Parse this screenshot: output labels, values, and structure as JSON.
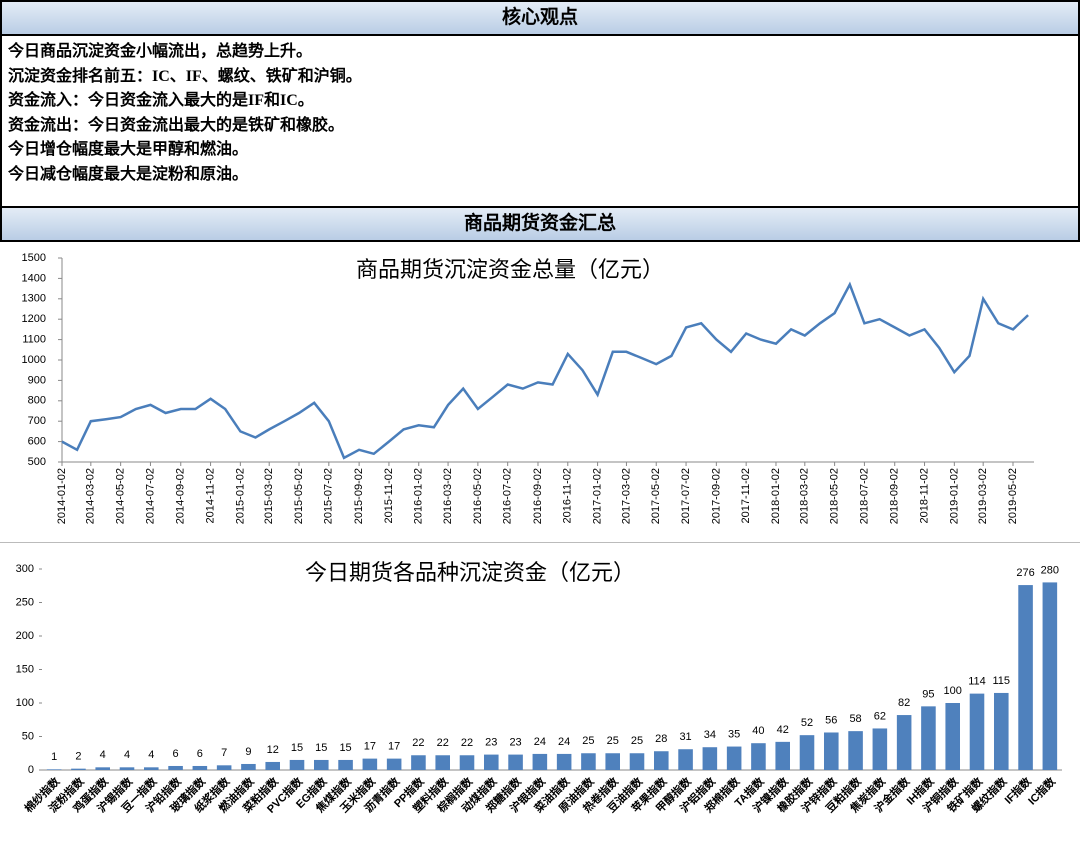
{
  "header": {
    "title": "核心观点"
  },
  "points": [
    "今日商品沉淀资金小幅流出，总趋势上升。",
    "沉淀资金排名前五：IC、IF、螺纹、铁矿和沪铜。",
    "资金流入：今日资金流入最大的是IF和IC。",
    "资金流出：今日资金流出最大的是铁矿和橡胶。",
    "今日增仓幅度最大是甲醇和燃油。",
    "今日减仓幅度最大是淀粉和原油。"
  ],
  "section_title": "商品期货资金汇总",
  "chart_data": [
    {
      "type": "line",
      "title": "商品期货沉淀资金总量（亿元）",
      "color": "#4a7ebb",
      "x": [
        "2014-01-02",
        "2014-02-02",
        "2014-03-02",
        "2014-04-02",
        "2014-05-02",
        "2014-06-02",
        "2014-07-02",
        "2014-08-02",
        "2014-09-02",
        "2014-10-02",
        "2014-11-02",
        "2014-12-02",
        "2015-01-02",
        "2015-02-02",
        "2015-03-02",
        "2015-04-02",
        "2015-05-02",
        "2015-06-02",
        "2015-07-02",
        "2015-08-02",
        "2015-09-02",
        "2015-10-02",
        "2015-11-02",
        "2015-12-02",
        "2016-01-02",
        "2016-02-02",
        "2016-03-02",
        "2016-04-02",
        "2016-05-02",
        "2016-06-02",
        "2016-07-02",
        "2016-08-02",
        "2016-09-02",
        "2016-10-02",
        "2016-11-02",
        "2016-12-02",
        "2017-01-02",
        "2017-02-02",
        "2017-03-02",
        "2017-04-02",
        "2017-05-02",
        "2017-06-02",
        "2017-07-02",
        "2017-08-02",
        "2017-09-02",
        "2017-10-02",
        "2017-11-02",
        "2017-12-02",
        "2018-01-02",
        "2018-02-02",
        "2018-03-02",
        "2018-04-02",
        "2018-05-02",
        "2018-06-02",
        "2018-07-02",
        "2018-08-02",
        "2018-09-02",
        "2018-10-02",
        "2018-11-02",
        "2018-12-02",
        "2019-01-02",
        "2019-02-02",
        "2019-03-02",
        "2019-04-02",
        "2019-05-02",
        "2019-06-02"
      ],
      "values": [
        600,
        560,
        700,
        710,
        720,
        760,
        780,
        740,
        760,
        760,
        810,
        760,
        650,
        620,
        660,
        700,
        740,
        790,
        700,
        520,
        560,
        540,
        600,
        660,
        680,
        670,
        780,
        860,
        760,
        820,
        880,
        860,
        890,
        880,
        1030,
        950,
        830,
        1040,
        1040,
        1010,
        980,
        1020,
        1160,
        1180,
        1100,
        1040,
        1130,
        1100,
        1080,
        1150,
        1120,
        1180,
        1230,
        1370,
        1180,
        1200,
        1160,
        1120,
        1150,
        1060,
        940,
        1020,
        1300,
        1180,
        1150,
        1220
      ],
      "xlim": [
        "2014-01-02",
        "2019-06-14"
      ],
      "xticks": [
        "2014-01-02",
        "2014-03-02",
        "2014-05-02",
        "2014-07-02",
        "2014-09-02",
        "2014-11-02",
        "2015-01-02",
        "2015-03-02",
        "2015-05-02",
        "2015-07-02",
        "2015-09-02",
        "2015-11-02",
        "2016-01-02",
        "2016-03-02",
        "2016-05-02",
        "2016-07-02",
        "2016-09-02",
        "2016-11-02",
        "2017-01-02",
        "2017-03-02",
        "2017-05-02",
        "2017-07-02",
        "2017-09-02",
        "2017-11-02",
        "2018-01-02",
        "2018-03-02",
        "2018-05-02",
        "2018-07-02",
        "2018-09-02",
        "2018-11-02",
        "2019-01-02",
        "2019-03-02",
        "2019-05-02"
      ],
      "ylim": [
        500,
        1500
      ],
      "yticks": [
        500,
        600,
        700,
        800,
        900,
        1000,
        1100,
        1200,
        1300,
        1400,
        1500
      ]
    },
    {
      "type": "bar",
      "title": "今日期货各品种沉淀资金（亿元）",
      "color": "#4f81bd",
      "categories": [
        "棉纱指数",
        "淀粉指数",
        "鸡蛋指数",
        "沪锡指数",
        "豆一指数",
        "沪铅指数",
        "玻璃指数",
        "纸浆指数",
        "燃油指数",
        "菜粕指数",
        "PVC指数",
        "EG指数",
        "焦煤指数",
        "玉米指数",
        "沥青指数",
        "PP指数",
        "塑料指数",
        "棕榈指数",
        "动煤指数",
        "郑糖指数",
        "沪银指数",
        "菜油指数",
        "原油指数",
        "热卷指数",
        "豆油指数",
        "苹果指数",
        "甲醇指数",
        "沪铝指数",
        "郑棉指数",
        "TA指数",
        "沪镍指数",
        "橡胶指数",
        "沪锌指数",
        "豆粕指数",
        "焦炭指数",
        "沪金指数",
        "IH指数",
        "沪铜指数",
        "铁矿指数",
        "螺纹指数",
        "IF指数",
        "IC指数"
      ],
      "values": [
        1,
        2,
        4,
        4,
        4,
        6,
        6,
        7,
        9,
        12,
        15,
        15,
        15,
        17,
        17,
        22,
        22,
        22,
        23,
        23,
        24,
        24,
        25,
        25,
        25,
        28,
        31,
        34,
        35,
        40,
        42,
        52,
        56,
        58,
        62,
        82,
        95,
        100,
        114,
        115,
        276,
        280
      ],
      "ylim": [
        0,
        300
      ],
      "yticks": [
        0,
        50,
        100,
        150,
        200,
        250,
        300
      ]
    }
  ]
}
